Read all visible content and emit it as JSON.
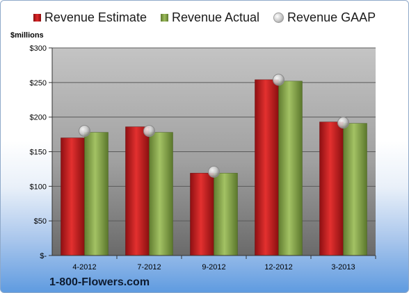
{
  "legend": {
    "estimate": "Revenue Estimate",
    "actual": "Revenue Actual",
    "gaap": "Revenue GAAP"
  },
  "unit_label": "$millions",
  "company": "1-800-Flowers.com",
  "colors": {
    "estimate": "#d62a2c",
    "actual": "#8fae4f",
    "gaap": "#c8c8c8"
  },
  "chart_data": {
    "type": "bar",
    "title": "",
    "xlabel": "",
    "ylabel": "$millions",
    "categories": [
      "4-2012",
      "7-2012",
      "9-2012",
      "12-2012",
      "3-2013"
    ],
    "series": [
      {
        "name": "Revenue Estimate",
        "type": "bar",
        "values": [
          170,
          186,
          119,
          254,
          193
        ]
      },
      {
        "name": "Revenue Actual",
        "type": "bar",
        "values": [
          178,
          178,
          119,
          252,
          191
        ]
      },
      {
        "name": "Revenue GAAP",
        "type": "marker",
        "values": [
          180,
          180,
          121,
          254,
          192
        ]
      }
    ],
    "ylim": [
      0,
      300
    ],
    "yticks": [
      0,
      50,
      100,
      150,
      200,
      250,
      300
    ],
    "ytick_labels": [
      "$-",
      "$50",
      "$100",
      "$150",
      "$200",
      "$250",
      "$300"
    ],
    "grid": true,
    "legend_position": "top"
  }
}
